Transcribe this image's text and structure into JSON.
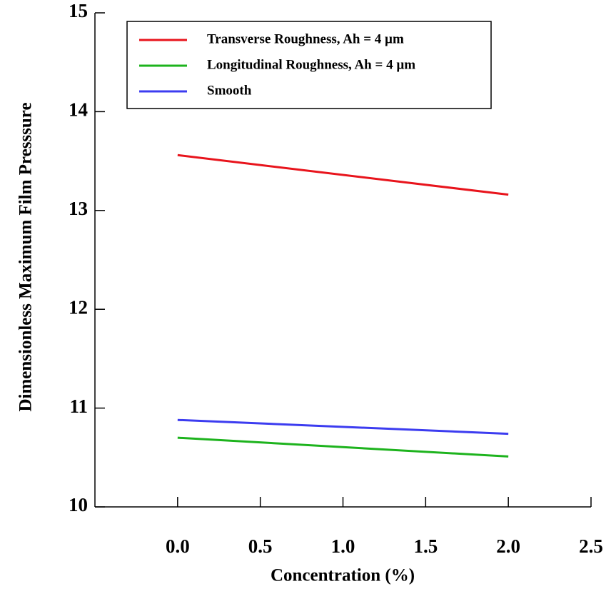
{
  "chart_data": {
    "type": "line",
    "xlabel": "Concentration (%)",
    "ylabel": "Dimensionless Maximum Film Presssure",
    "x": [
      0,
      2
    ],
    "series": [
      {
        "name": "Transverse Roughness, Ah = 4 µm",
        "color": "#e8141c",
        "values": [
          13.56,
          13.16
        ]
      },
      {
        "name": " Longitudinal Roughness, Ah = 4 µm",
        "color": "#1db31d",
        "values": [
          10.7,
          10.51
        ]
      },
      {
        "name": "Smooth",
        "color": "#3c3cf0",
        "values": [
          10.88,
          10.74
        ]
      }
    ],
    "xlim": [
      -0.5,
      2.5
    ],
    "xticks": [
      {
        "value": 0,
        "label": "0.0"
      },
      0.5,
      {
        "value": 1,
        "label": "1.0"
      },
      1.5,
      {
        "value": 2,
        "label": "2.0"
      },
      2.5
    ],
    "ylim": [
      10,
      15
    ],
    "yticks": [
      10,
      11,
      12,
      13,
      14,
      15
    ],
    "legend": "upper left"
  }
}
